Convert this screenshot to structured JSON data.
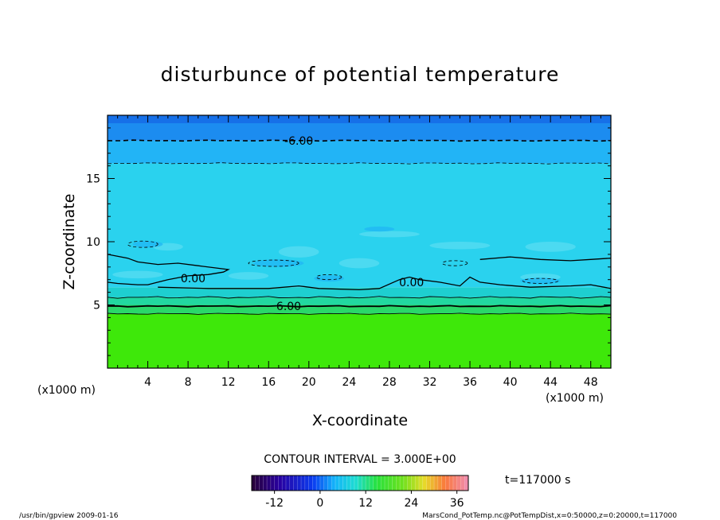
{
  "chart_data": {
    "type": "heatmap",
    "title": "disturbunce of potential temperature",
    "xlabel": "X-coordinate",
    "ylabel": "Z-coordinate",
    "x_unit_label": "(x1000 m)",
    "xlim": [
      0,
      50
    ],
    "ylim": [
      0,
      20
    ],
    "x_ticks": [
      "4",
      "8",
      "12",
      "16",
      "20",
      "24",
      "28",
      "32",
      "36",
      "40",
      "44",
      "48"
    ],
    "y_ticks": [
      "5",
      "10",
      "15"
    ],
    "contour_interval_text": "CONTOUR INTERVAL = 3.000E+00",
    "contour_labels": [
      {
        "text": "-6.00",
        "x": 19,
        "y": 18.0
      },
      {
        "text": "0.00",
        "x": 8.5,
        "y": 7.1
      },
      {
        "text": "0.00",
        "x": 30.2,
        "y": 6.8
      },
      {
        "text": "6.00",
        "x": 18,
        "y": 4.9
      }
    ],
    "layers": [
      {
        "zmin": 0,
        "zmax": 4.3,
        "value_class": "9 to 12",
        "color": "#3ee80a"
      },
      {
        "zmin": 4.3,
        "zmax": 5.0,
        "value_class": "6 to 9",
        "color": "#2ad86a"
      },
      {
        "zmin": 5.0,
        "zmax": 5.6,
        "value_class": "3 to 6",
        "color": "#22d8a0"
      },
      {
        "zmin": 5.6,
        "zmax": 6.4,
        "value_class": "0 to 3",
        "color": "#1ecfd0"
      },
      {
        "zmin": 6.4,
        "zmax": 16.2,
        "value_class": "-3 to 0",
        "color": "#2ad2ee"
      },
      {
        "zmin": 16.2,
        "zmax": 18.0,
        "value_class": "-6 to -3",
        "color": "#22b4f6"
      },
      {
        "zmin": 18.0,
        "zmax": 20.0,
        "value_class": "-9 to -6",
        "color": "#1c8cf0"
      }
    ],
    "colorbar": {
      "ticks": [
        "-12",
        "0",
        "12",
        "24",
        "36"
      ],
      "vmin": -18,
      "vmax": 39
    }
  },
  "time_label": "t=117000 s",
  "footer": {
    "left": "/usr/bin/gpview   2009-01-16",
    "right": "MarsCond_PotTemp.nc@PotTempDist,x=0:50000,z=0:20000,t=117000"
  }
}
